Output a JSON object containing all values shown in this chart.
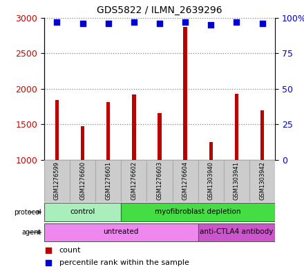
{
  "title": "GDS5822 / ILMN_2639296",
  "samples": [
    "GSM1276599",
    "GSM1276600",
    "GSM1276601",
    "GSM1276602",
    "GSM1276603",
    "GSM1276604",
    "GSM1303940",
    "GSM1303941",
    "GSM1303942"
  ],
  "counts": [
    1840,
    1470,
    1810,
    1920,
    1660,
    2870,
    1250,
    1930,
    1700
  ],
  "percentiles": [
    97,
    96,
    96,
    97,
    96,
    97,
    95,
    97,
    96
  ],
  "ylim_left": [
    1000,
    3000
  ],
  "ylim_right": [
    0,
    100
  ],
  "yticks_left": [
    1000,
    1500,
    2000,
    2500,
    3000
  ],
  "yticks_right": [
    0,
    25,
    50,
    75,
    100
  ],
  "ytick_right_labels": [
    "0",
    "25",
    "50",
    "75",
    "100%"
  ],
  "bar_color": "#bb0000",
  "dot_color": "#0000cc",
  "protocol_groups": [
    {
      "label": "control",
      "start": 0,
      "end": 3,
      "color": "#aaeebb"
    },
    {
      "label": "myofibroblast depletion",
      "start": 3,
      "end": 9,
      "color": "#44dd44"
    }
  ],
  "agent_groups": [
    {
      "label": "untreated",
      "start": 0,
      "end": 6,
      "color": "#ee88ee"
    },
    {
      "label": "anti-CTLA4 antibody",
      "start": 6,
      "end": 9,
      "color": "#cc55cc"
    }
  ],
  "legend_count_label": "count",
  "legend_pct_label": "percentile rank within the sample",
  "left_tick_color": "#cc0000",
  "right_tick_color": "#0000cc",
  "bar_width": 0.15,
  "dot_size": 40,
  "sample_box_color": "#cccccc",
  "sample_box_edge": "#aaaaaa",
  "grid_color": "black",
  "grid_alpha": 0.5,
  "label_fontsize": 7,
  "sample_fontsize": 6,
  "title_fontsize": 10
}
